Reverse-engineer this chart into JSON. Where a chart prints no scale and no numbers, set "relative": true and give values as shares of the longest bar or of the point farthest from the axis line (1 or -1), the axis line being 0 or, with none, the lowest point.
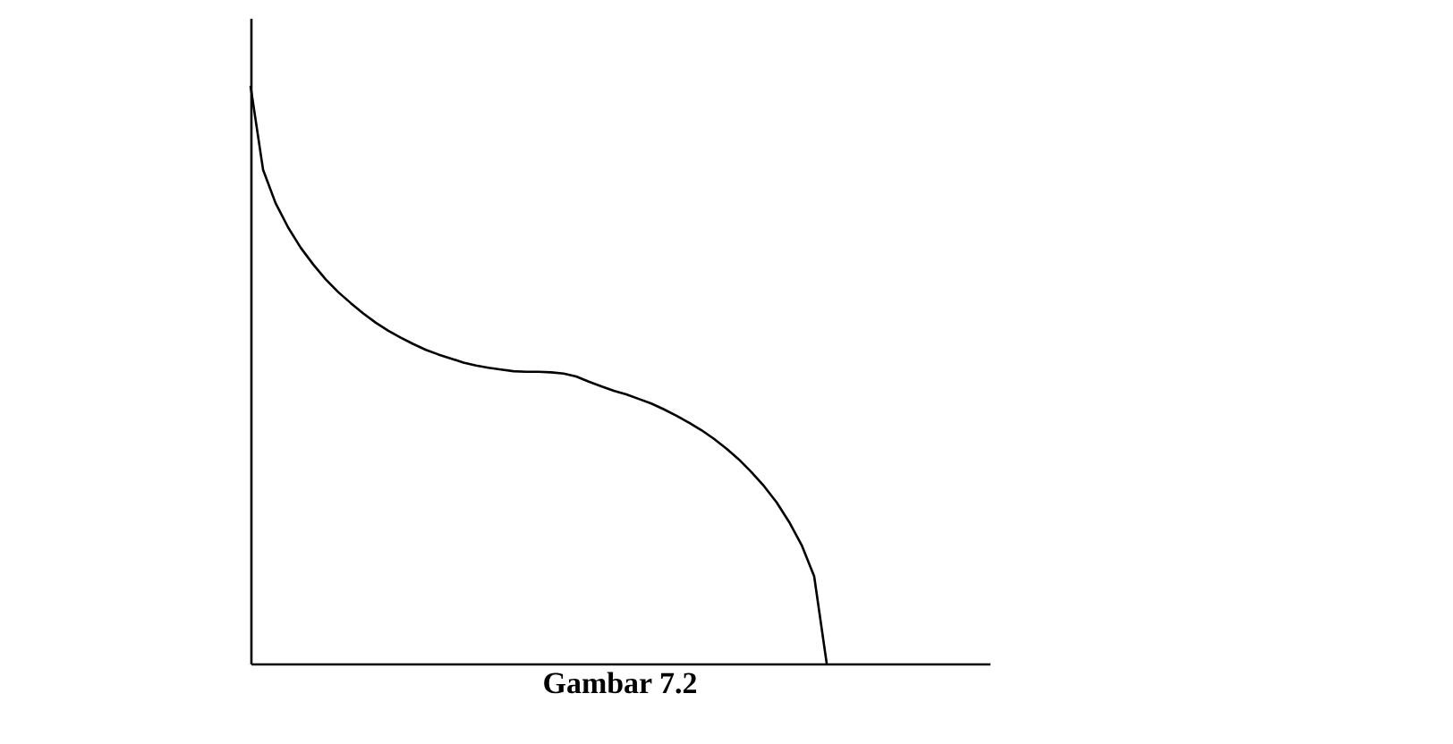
{
  "chart_data": {
    "type": "line",
    "title": "Gambar 7.2",
    "relative": true,
    "tick_labels": false,
    "grid": false,
    "marker": "none",
    "line_style": "solid",
    "categories": [
      null,
      null,
      null,
      null,
      null,
      null,
      null,
      null,
      null,
      null,
      null,
      null,
      null,
      null,
      null,
      null,
      null,
      null,
      null,
      null,
      null,
      null,
      null,
      null,
      null,
      null,
      null,
      null,
      null,
      null,
      null,
      null,
      null,
      null,
      null,
      null,
      null,
      null,
      null,
      null,
      null,
      null,
      null,
      null,
      null,
      null,
      null,
      null,
      null,
      null,
      null,
      null,
      null,
      null,
      null,
      null,
      null,
      null,
      null,
      null
    ],
    "series": [
      {
        "color": "#000000",
        "values": [
          1,
          0.855,
          0.797,
          0.755,
          0.72,
          0.691,
          0.665,
          0.643,
          0.624,
          0.606,
          0.59,
          0.576,
          0.564,
          0.553,
          0.543,
          0.535,
          0.528,
          0.521,
          0.516,
          0.512,
          0.509,
          0.506,
          0.505,
          0.505,
          0.504,
          0.502,
          0.497,
          0.488,
          0.48,
          0.472,
          0.466,
          0.458,
          0.45,
          0.44,
          0.429,
          0.417,
          0.404,
          0.389,
          0.372,
          0.353,
          0.331,
          0.307,
          0.279,
          0.245,
          0.205,
          0.151,
          0,
          null,
          null,
          null,
          null,
          null,
          null,
          null,
          null,
          null,
          null,
          null,
          null,
          null
        ]
      }
    ]
  }
}
